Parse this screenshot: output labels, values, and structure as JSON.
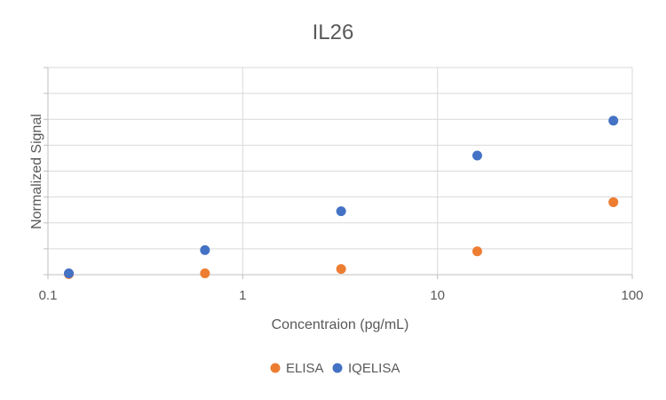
{
  "chart_data": {
    "type": "scatter",
    "title": "IL26",
    "xlabel": "Concentraion (pg/mL)",
    "ylabel": "Normalized Signal",
    "x_scale": "log",
    "xlim": [
      0.1,
      100
    ],
    "ylim": [
      0,
      8
    ],
    "x_tick_labels": [
      "0.1",
      "1",
      "10",
      "100"
    ],
    "x_ticks": [
      0.1,
      1,
      10,
      100
    ],
    "y_tick_labels_shown": false,
    "grid": true,
    "legend_position": "bottom",
    "series": [
      {
        "name": "ELISA",
        "color": "#ED7D31",
        "points": [
          {
            "x": 0.128,
            "y": 0.02
          },
          {
            "x": 0.64,
            "y": 0.05
          },
          {
            "x": 3.2,
            "y": 0.22
          },
          {
            "x": 16,
            "y": 0.9
          },
          {
            "x": 80,
            "y": 2.8
          }
        ]
      },
      {
        "name": "IQELISA",
        "color": "#4472C4",
        "points": [
          {
            "x": 0.128,
            "y": 0.05
          },
          {
            "x": 0.64,
            "y": 0.95
          },
          {
            "x": 3.2,
            "y": 2.45
          },
          {
            "x": 16,
            "y": 4.6
          },
          {
            "x": 80,
            "y": 5.95
          }
        ]
      }
    ]
  }
}
